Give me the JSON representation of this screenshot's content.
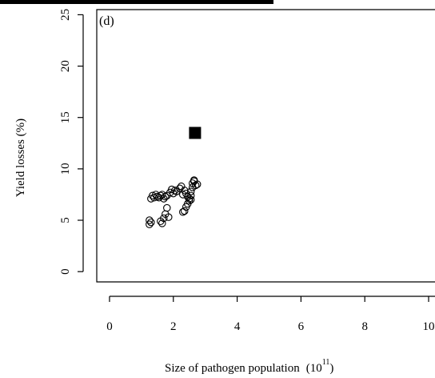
{
  "chart_data": {
    "type": "scatter",
    "panel_label": "(d)",
    "xlabel": "Size of pathogen population",
    "xlabel_unit_base": "(10",
    "xlabel_unit_exp": "11",
    "xlabel_unit_close": ")",
    "ylabel": "Yield losses (%)",
    "xlim": [
      -0.4,
      10.2
    ],
    "ylim": [
      -1.0,
      25.5
    ],
    "xticks": [
      0,
      2,
      4,
      6,
      8,
      10
    ],
    "yticks": [
      0,
      5,
      10,
      15,
      20,
      25
    ],
    "series": [
      {
        "marker": "open-circle",
        "x": [
          1.25,
          1.25,
          1.3,
          1.3,
          1.35,
          1.4,
          1.45,
          1.5,
          1.55,
          1.6,
          1.65,
          1.7,
          1.75,
          1.8,
          1.8,
          1.6,
          1.65,
          1.7,
          1.75,
          1.85,
          1.9,
          1.95,
          2.0,
          2.05,
          2.1,
          2.2,
          2.25,
          2.3,
          2.35,
          2.4,
          2.45,
          2.5,
          2.55,
          2.3,
          2.35,
          2.4,
          2.45,
          2.5,
          2.55,
          2.6,
          2.65,
          2.7,
          2.75,
          2.55,
          2.6,
          2.65
        ],
        "y": [
          4.6,
          5.0,
          4.8,
          7.1,
          7.4,
          7.2,
          7.5,
          7.3,
          7.2,
          7.4,
          7.5,
          7.1,
          7.3,
          7.4,
          6.2,
          4.9,
          4.7,
          5.2,
          5.6,
          5.3,
          7.7,
          8.0,
          7.6,
          7.9,
          7.8,
          8.1,
          8.3,
          7.5,
          7.9,
          7.6,
          7.3,
          7.1,
          7.0,
          5.8,
          5.9,
          6.3,
          6.6,
          6.9,
          7.4,
          8.6,
          8.8,
          8.4,
          8.5,
          7.8,
          8.2,
          8.9
        ]
      },
      {
        "marker": "filled-square",
        "x": [
          2.68
        ],
        "y": [
          13.5
        ]
      }
    ]
  }
}
